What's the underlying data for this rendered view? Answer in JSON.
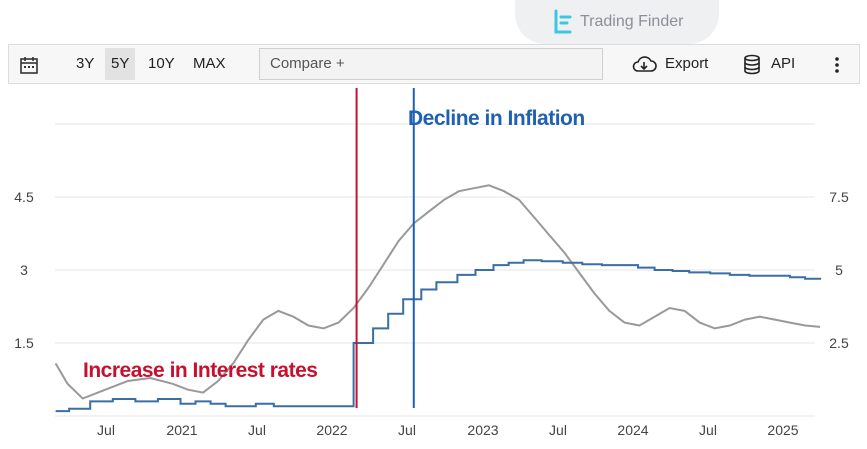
{
  "brand": {
    "name": "Trading Finder"
  },
  "toolbar": {
    "ranges": [
      "3Y",
      "5Y",
      "10Y",
      "MAX"
    ],
    "active_range": "5Y",
    "compare_label": "Compare +",
    "export_label": "Export",
    "api_label": "API"
  },
  "colors": {
    "interest": "#3a6ea5",
    "inflation": "#999999",
    "red_line": "#c8102e",
    "blue_line": "#1f5fb5",
    "red_text": "#c8102e",
    "blue_text": "#1f5fb5"
  },
  "chart_data": {
    "type": "line",
    "x_ticks": [
      "Jul",
      "2021",
      "Jul",
      "2022",
      "Jul",
      "2023",
      "Jul",
      "2024",
      "Jul",
      "2025"
    ],
    "y_left_ticks": [
      "1.5",
      "3",
      "4.5"
    ],
    "y_right_ticks": [
      "2.5",
      "5",
      "7.5"
    ],
    "y_left_range": [
      0,
      6
    ],
    "y_right_range": [
      0,
      10
    ],
    "series": [
      {
        "axis": "left",
        "x": [
          2020.17,
          2020.26,
          2020.4,
          2020.55,
          2020.7,
          2020.85,
          2021.0,
          2021.1,
          2021.2,
          2021.3,
          2021.4,
          2021.5,
          2021.62,
          2021.72,
          2021.85,
          2021.95,
          2022.05,
          2022.15,
          2022.28,
          2022.38,
          2022.48,
          2022.6,
          2022.7,
          2022.84,
          2022.96,
          2023.08,
          2023.18,
          2023.28,
          2023.4,
          2023.54,
          2023.67,
          2023.8,
          2023.92,
          2024.04,
          2024.15,
          2024.27,
          2024.38,
          2024.52,
          2024.65,
          2024.78,
          2024.9,
          2025.05,
          2025.15,
          2025.25
        ],
        "y": [
          0.1,
          0.15,
          0.3,
          0.35,
          0.3,
          0.35,
          0.25,
          0.3,
          0.25,
          0.2,
          0.2,
          0.25,
          0.2,
          0.2,
          0.2,
          0.2,
          0.2,
          1.5,
          1.8,
          2.1,
          2.4,
          2.6,
          2.75,
          2.9,
          3.0,
          3.1,
          3.15,
          3.2,
          3.18,
          3.15,
          3.12,
          3.1,
          3.1,
          3.05,
          3.0,
          2.98,
          2.95,
          2.93,
          2.9,
          2.88,
          2.88,
          2.85,
          2.82,
          2.8
        ]
      },
      {
        "axis": "right",
        "x": [
          2020.17,
          2020.25,
          2020.35,
          2020.5,
          2020.65,
          2020.8,
          2020.95,
          2021.05,
          2021.15,
          2021.25,
          2021.35,
          2021.45,
          2021.55,
          2021.65,
          2021.75,
          2021.85,
          2021.95,
          2022.05,
          2022.15,
          2022.25,
          2022.35,
          2022.45,
          2022.55,
          2022.65,
          2022.75,
          2022.85,
          2022.95,
          2023.05,
          2023.15,
          2023.25,
          2023.35,
          2023.45,
          2023.55,
          2023.65,
          2023.75,
          2023.85,
          2023.95,
          2024.05,
          2024.15,
          2024.25,
          2024.35,
          2024.45,
          2024.55,
          2024.65,
          2024.75,
          2024.85,
          2024.95,
          2025.05,
          2025.15,
          2025.25
        ],
        "y": [
          1.8,
          1.1,
          0.6,
          0.9,
          1.2,
          1.3,
          1.1,
          0.9,
          0.8,
          1.2,
          1.8,
          2.6,
          3.3,
          3.6,
          3.4,
          3.1,
          3.0,
          3.2,
          3.7,
          4.4,
          5.2,
          6.0,
          6.6,
          7.0,
          7.4,
          7.7,
          7.8,
          7.9,
          7.7,
          7.4,
          6.8,
          6.2,
          5.6,
          4.9,
          4.2,
          3.6,
          3.2,
          3.1,
          3.4,
          3.7,
          3.6,
          3.2,
          3.0,
          3.1,
          3.3,
          3.4,
          3.3,
          3.2,
          3.1,
          3.05
        ]
      }
    ],
    "annotations": [
      {
        "text": "Increase in Interest rates",
        "x": 2022.17,
        "color": "red"
      },
      {
        "text": "Decline in Inflation",
        "x": 2022.55,
        "color": "blue"
      }
    ]
  }
}
